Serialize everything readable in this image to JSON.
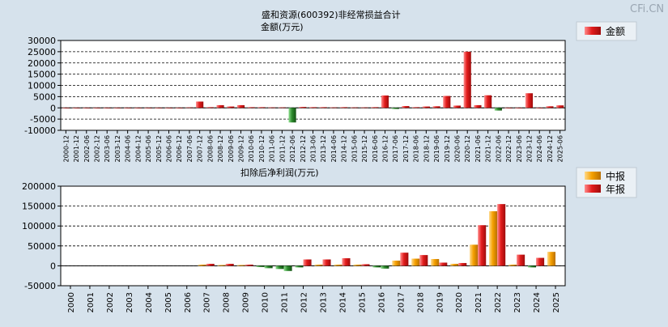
{
  "watermark": "CFi.CN",
  "chart_data": [
    {
      "type": "bar",
      "title": "盛和资源(600392)非经常损益合计",
      "subtitle": "金额(万元)",
      "legend": {
        "position": "top-right",
        "entries": [
          "金额"
        ]
      },
      "colors": {
        "positive": "#e21c1c",
        "negative": "#2e8b2e"
      },
      "ylim": [
        -10000,
        30000
      ],
      "yticks": [
        -10000,
        -5000,
        0,
        5000,
        10000,
        15000,
        20000,
        25000,
        30000
      ],
      "grid": true,
      "categories": [
        "2000-12",
        "2001-12",
        "2002-06",
        "2002-12",
        "2003-06",
        "2003-12",
        "2004-06",
        "2004-12",
        "2005-06",
        "2005-12",
        "2006-06",
        "2006-12",
        "2007-06",
        "2007-12",
        "2008-06",
        "2008-12",
        "2009-06",
        "2009-12",
        "2010-06",
        "2010-12",
        "2011-06",
        "2011-12",
        "2012-06",
        "2012-12",
        "2013-06",
        "2013-12",
        "2014-06",
        "2014-12",
        "2015-06",
        "2015-12",
        "2016-06",
        "2016-12",
        "2017-06",
        "2017-12",
        "2018-06",
        "2018-12",
        "2019-06",
        "2019-12",
        "2020-06",
        "2020-12",
        "2021-06",
        "2021-12",
        "2022-06",
        "2022-12",
        "2023-06",
        "2023-12",
        "2024-06",
        "2024-12",
        "2025-06"
      ],
      "series": [
        {
          "name": "金额",
          "values": [
            0,
            0,
            0,
            0,
            0,
            0,
            0,
            0,
            0,
            0,
            0,
            0,
            200,
            2800,
            300,
            1200,
            600,
            1200,
            300,
            300,
            200,
            200,
            -6500,
            400,
            300,
            300,
            200,
            300,
            200,
            200,
            300,
            5500,
            -500,
            800,
            300,
            600,
            700,
            5300,
            1000,
            25000,
            1200,
            5600,
            -1200,
            0,
            0,
            6500,
            0,
            700,
            1100
          ]
        }
      ]
    },
    {
      "type": "bar",
      "title": "扣除后净利润(万元)",
      "legend": {
        "position": "top-right",
        "entries": [
          "中报",
          "年报"
        ]
      },
      "colors": {
        "中报": "#f5a000",
        "年报": "#e21c1c"
      },
      "ylim": [
        -50000,
        200000
      ],
      "yticks": [
        -50000,
        0,
        50000,
        100000,
        150000,
        200000
      ],
      "grid": true,
      "categories": [
        "2000",
        "2001",
        "2002",
        "2003",
        "2004",
        "2005",
        "2006",
        "2007",
        "2008",
        "2009",
        "2010",
        "2011",
        "2012",
        "2013",
        "2014",
        "2015",
        "2016",
        "2017",
        "2018",
        "2019",
        "2020",
        "2021",
        "2022",
        "2023",
        "2024",
        "2025"
      ],
      "series": [
        {
          "name": "中报",
          "values": [
            null,
            null,
            null,
            null,
            null,
            null,
            null,
            3000,
            2000,
            2000,
            -3000,
            -8000,
            -4000,
            3000,
            3000,
            3000,
            -4000,
            13000,
            18000,
            17000,
            5000,
            53000,
            137000,
            3000,
            -4000,
            35000
          ]
        },
        {
          "name": "年报",
          "values": [
            null,
            null,
            null,
            null,
            null,
            null,
            null,
            5000,
            5000,
            3000,
            -6000,
            -13000,
            16000,
            16000,
            19000,
            4000,
            -7000,
            33000,
            27000,
            8000,
            7000,
            102000,
            155000,
            28000,
            20000,
            null
          ]
        }
      ]
    }
  ]
}
